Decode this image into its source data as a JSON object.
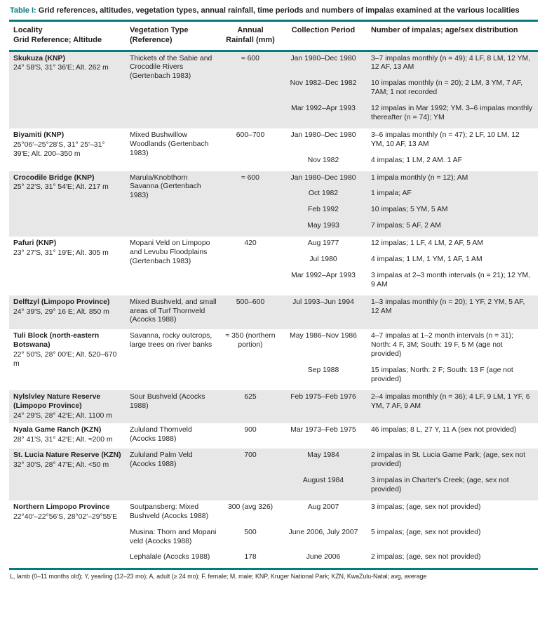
{
  "colors": {
    "accent_teal": "#077c80",
    "row_shade": "#e7e7e8"
  },
  "title": {
    "label": "Table I:",
    "text": "Grid references, altitudes, vegetation types, annual rainfall, time periods and numbers of impalas examined at the various localities"
  },
  "columns": {
    "locality": {
      "line1": "Locality",
      "line2": "Grid Reference; Altitude"
    },
    "vegetation": {
      "line1": "Vegetation Type",
      "line2": "(Reference)"
    },
    "rainfall": {
      "line1": "Annual",
      "line2": "Rainfall (mm)"
    },
    "period": "Collection Period",
    "impalas": "Number of impalas; age/sex distribution"
  },
  "rows": [
    {
      "locality_name": "Skukuza (KNP)",
      "locality_detail": "24° 58′S, 31° 36′E; Alt. 262 m",
      "shaded": true,
      "groups": [
        {
          "vegetation": "Thickets of the Sabie and Crocodile Rivers (Gertenbach 1983)",
          "rainfall": "≈ 600",
          "entries": [
            {
              "period": "Jan 1980–Dec 1980",
              "impalas": "3–7 impalas monthly (n = 49); 4 LF, 8 LM, 12 YM, 12 AF, 13 AM"
            },
            {
              "period": "Nov 1982–Dec 1982",
              "impalas": "10 impalas monthly (n = 20); 2 LM, 3 YM, 7 AF, 7AM; 1 not recorded"
            },
            {
              "period": "Mar 1992–Apr 1993",
              "impalas": "12 impalas in Mar 1992; YM. 3–6 impalas monthly thereafter (n = 74); YM"
            }
          ]
        }
      ]
    },
    {
      "locality_name": "Biyamiti (KNP)",
      "locality_detail": "25°06′–25°28′S, 31° 25′–31° 39′E; Alt. 200–350 m",
      "shaded": false,
      "groups": [
        {
          "vegetation": "Mixed Bushwillow Woodlands (Gertenbach 1983)",
          "rainfall": "600–700",
          "entries": [
            {
              "period": "Jan 1980–Dec 1980",
              "impalas": "3–6 impalas monthly (n = 47); 2 LF, 10 LM, 12 YM, 10 AF, 13 AM"
            },
            {
              "period": "Nov 1982",
              "impalas": "4 impalas; 1 LM, 2 AM. 1 AF"
            }
          ]
        }
      ]
    },
    {
      "locality_name": "Crocodile Bridge (KNP)",
      "locality_detail": "25° 22′S, 31° 54′E; Alt. 217 m",
      "shaded": true,
      "groups": [
        {
          "vegetation": "Marula/Knobthorn Savanna (Gertenbach 1983)",
          "rainfall": "≈ 600",
          "entries": [
            {
              "period": "Jan 1980–Dec 1980",
              "impalas": "1 impala monthly (n = 12); AM"
            },
            {
              "period": "Oct 1982",
              "impalas": "1 impala; AF"
            },
            {
              "period": "Feb 1992",
              "impalas": "10 impalas; 5 YM, 5 AM"
            },
            {
              "period": "May 1993",
              "impalas": "7 impalas; 5 AF, 2 AM"
            }
          ]
        }
      ]
    },
    {
      "locality_name": "Pafuri (KNP)",
      "locality_detail": "23° 27′S, 31° 19′E; Alt. 305 m",
      "shaded": false,
      "groups": [
        {
          "vegetation": "Mopani Veld on Limpopo and Levubu Floodplains (Gertenbach 1983)",
          "rainfall": "420",
          "entries": [
            {
              "period": "Aug 1977",
              "impalas": "12 impalas; 1 LF, 4 LM, 2 AF, 5 AM"
            },
            {
              "period": "Jul 1980",
              "impalas": "4 impalas; 1 LM, 1 YM, 1 AF, 1 AM"
            },
            {
              "period": "Mar 1992–Apr 1993",
              "impalas": "3 impalas at 2–3 month intervals (n = 21); 12 YM, 9 AM"
            }
          ]
        }
      ]
    },
    {
      "locality_name": "Delftzyl (Limpopo Province)",
      "locality_detail": "24° 39′S, 29° 16 E; Alt. 850 m",
      "shaded": true,
      "groups": [
        {
          "vegetation": "Mixed Bushveld, and small areas of Turf Thornveld (Acocks 1988)",
          "rainfall": "500–600",
          "entries": [
            {
              "period": "Jul 1993–Jun 1994",
              "impalas": "1–3 impalas monthly (n = 20); 1 YF, 2 YM, 5 AF, 12 AM"
            }
          ]
        }
      ]
    },
    {
      "locality_name": "Tuli Block (north-eastern Botswana)",
      "locality_detail": "22° 50′S, 28° 00′E; Alt. 520–670 m",
      "shaded": false,
      "groups": [
        {
          "vegetation": "Savanna, rocky outcrops, large trees on river banks",
          "rainfall": "≈ 350 (northern portion)",
          "entries": [
            {
              "period": "May 1986–Nov 1986",
              "impalas": "4–7 impalas at 1–2 month intervals (n = 31); North: 4 F, 3M; South: 19 F, 5 M (age not provided)"
            },
            {
              "period": "Sep 1988",
              "impalas": "15 impalas; North: 2 F; South: 13 F (age not provided)"
            }
          ]
        }
      ]
    },
    {
      "locality_name": "Nylslvley Nature Reserve (Limpopo Province)",
      "locality_detail": "24° 29′S, 28° 42′E; Alt. 1100 m",
      "shaded": true,
      "groups": [
        {
          "vegetation": "Sour Bushveld (Acocks 1988)",
          "rainfall": "625",
          "entries": [
            {
              "period": "Feb 1975–Feb 1976",
              "impalas": "2–4 impalas monthly (n = 36); 4 LF, 9 LM, 1 YF, 6 YM, 7 AF, 9 AM"
            }
          ]
        }
      ]
    },
    {
      "locality_name": "Nyala Game Ranch (KZN)",
      "locality_detail": "28° 41′S, 31° 42′E; Alt. ≈200 m",
      "shaded": false,
      "groups": [
        {
          "vegetation": "Zululand Thornveld (Acocks 1988)",
          "rainfall": "900",
          "entries": [
            {
              "period": "Mar 1973–Feb 1975",
              "impalas": "46 impalas; 8 L, 27 Y, 11 A (sex not provided)"
            }
          ]
        }
      ]
    },
    {
      "locality_name": "St. Lucia Nature Reserve (KZN)",
      "locality_detail": "32° 30′S, 28° 47′E; Alt. <50 m",
      "shaded": true,
      "groups": [
        {
          "vegetation": "Zululand Palm Veld (Acocks 1988)",
          "rainfall": "700",
          "entries": [
            {
              "period": "May 1984",
              "impalas": "2 impalas in St. Lucia Game Park; (age, sex not provided)"
            },
            {
              "period": "August 1984",
              "impalas": "3 impalas in Charter's Creek; (age, sex not provided)"
            }
          ]
        }
      ]
    },
    {
      "locality_name": "Northern Limpopo Province",
      "locality_detail": "22°40′–22°56′S, 28°02′–29°55′E",
      "shaded": false,
      "groups": [
        {
          "vegetation": "Soutpansberg: Mixed Bushveld (Acocks 1988)",
          "rainfall": "300 (avg 326)",
          "entries": [
            {
              "period": "Aug 2007",
              "impalas": "3 impalas; (age, sex not provided)"
            }
          ]
        },
        {
          "vegetation": "Musina: Thorn and Mopani veld (Acocks 1988)",
          "rainfall": "500",
          "entries": [
            {
              "period": "June 2006, July 2007",
              "impalas": "5 impalas; (age, sex not provided)"
            }
          ]
        },
        {
          "vegetation": "Lephalale (Acocks 1988)",
          "rainfall": "178",
          "entries": [
            {
              "period": "June 2006",
              "impalas": "2 impalas; (age, sex not provided)"
            }
          ]
        }
      ]
    }
  ],
  "footnote": "L, lamb (0–11 months old); Y, yearling (12–23 mo); A, adult (≥ 24 mo); F, female; M, male; KNP, Kruger National Park; KZN, KwaZulu-Natal; avg, average"
}
